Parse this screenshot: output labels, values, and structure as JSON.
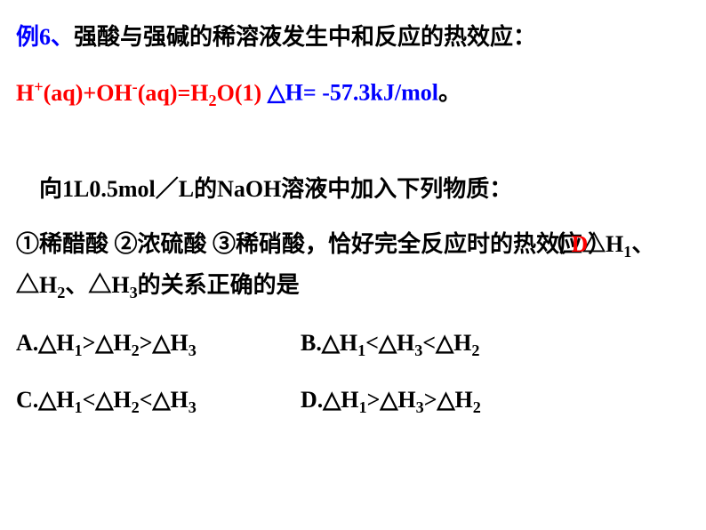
{
  "title": {
    "prefix": "例6、",
    "text": "强酸与强碱的稀溶液发生中和反应的热效应："
  },
  "equation": {
    "lhs_h": "H",
    "lhs_h_sup": "+",
    "lhs_h_aq": "(aq)+OH",
    "lhs_oh_sup": "-",
    "lhs_oh_aq": "(aq)=H",
    "h2o_sub": "2",
    "h2o_tail": "O(1)  ",
    "delta": "△H= -57.3kJ/mol",
    "period": "。"
  },
  "body1": "  向1L0.5mol／L的NaOH溶液中加入下列物质：",
  "body2_a": " ①稀醋酸  ②浓硫酸  ③稀硝酸，恰好完全反应时的热效应△H",
  "body2_sub1": "1",
  "body2_b": "、△H",
  "body2_sub2": "2",
  "body2_c": "、△H",
  "body2_sub3": "3",
  "body2_d": "的关系正确的是",
  "paren_open": "（ ",
  "answer": "D",
  "paren_close": "）",
  "optA": {
    "pre": " A.△H",
    "s1": "1",
    "m1": ">△H",
    "s2": "2",
    "m2": ">△H",
    "s3": "3"
  },
  "optB": {
    "pre": "B.△H",
    "s1": "1",
    "m1": "<△H",
    "s2": "3",
    "m2": "<△H",
    "s3": "2"
  },
  "optC": {
    "pre": " C.△H",
    "s1": "1",
    "m1": "<△H",
    "s2": "2",
    "m2": "<△H",
    "s3": "3"
  },
  "optD": {
    "pre": "D.△H",
    "s1": "1",
    "m1": ">△H",
    "s2": "3",
    "m2": ">△H",
    "s3": "2"
  },
  "colors": {
    "blue": "#0000ff",
    "red": "#ff0000",
    "black": "#000000",
    "background": "#ffffff"
  },
  "font": {
    "size_pt": 20,
    "weight": "bold",
    "family": "SimSun"
  }
}
